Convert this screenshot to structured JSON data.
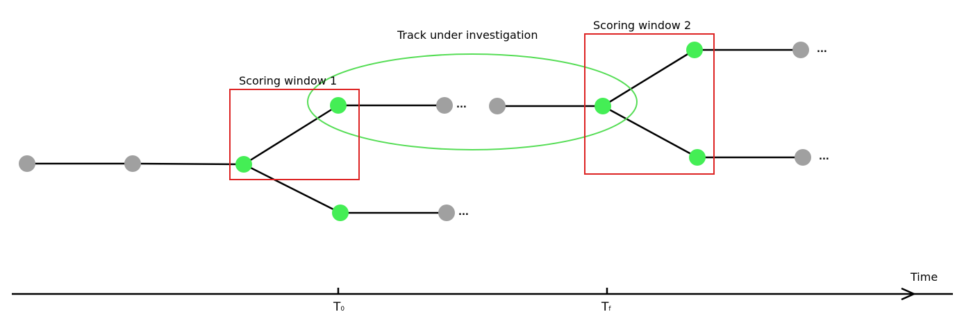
{
  "labels": {
    "track": "Track under investigation",
    "window1": "Scoring window 1",
    "window2": "Scoring window 2",
    "axis": "Time",
    "t0_main": "T",
    "t0_sub": "0",
    "tf_main": "T",
    "tf_sub": "f",
    "ellipsis": "..."
  },
  "colors": {
    "active_node": "#44ee55",
    "inactive_node": "#a0a0a0",
    "window_border": "#dd2222",
    "track_ellipse": "#55dd55",
    "edge": "#000000"
  }
}
